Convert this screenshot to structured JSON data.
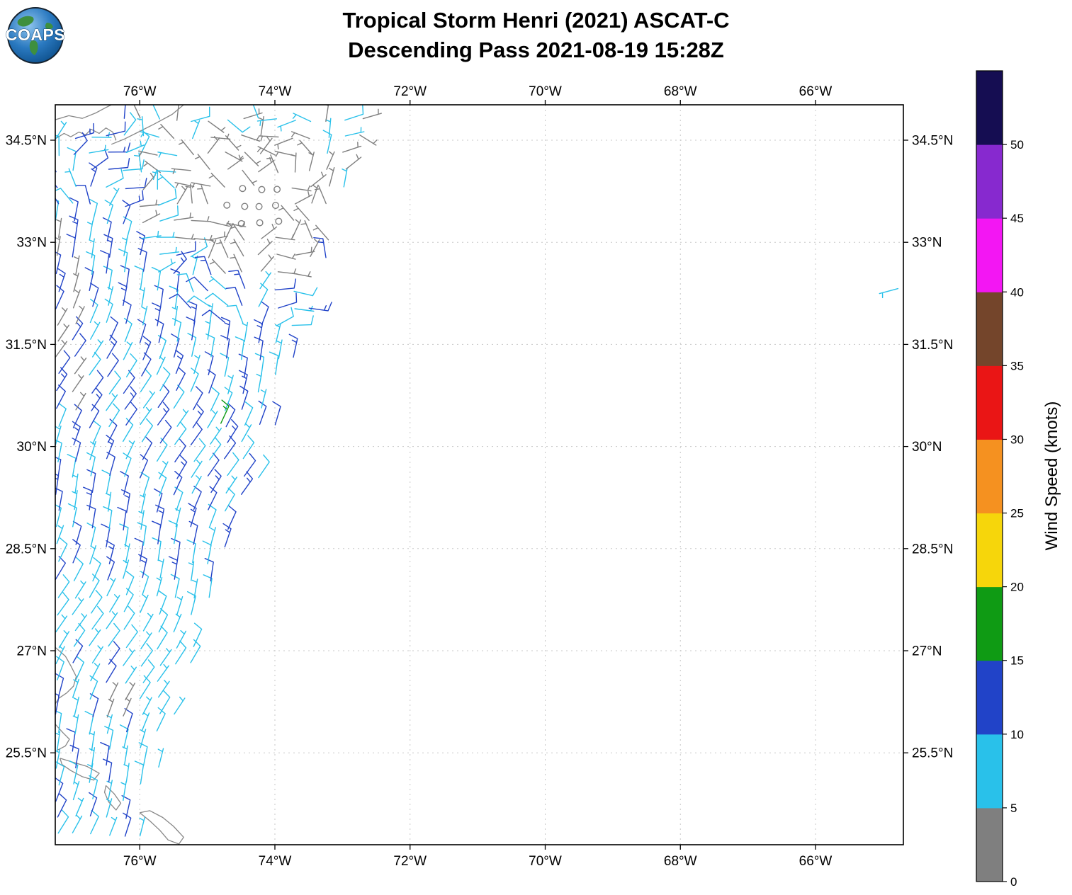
{
  "header": {
    "title_line1": "Tropical Storm Henri (2021) ASCAT-C",
    "title_line2": "Descending Pass 2021-08-19 15:28Z",
    "logo_text": "COAPS"
  },
  "axes": {
    "lon_ticks": [
      {
        "deg": -76,
        "label": "76°W"
      },
      {
        "deg": -74,
        "label": "74°W"
      },
      {
        "deg": -72,
        "label": "72°W"
      },
      {
        "deg": -70,
        "label": "70°W"
      },
      {
        "deg": -68,
        "label": "68°W"
      },
      {
        "deg": -66,
        "label": "66°W"
      }
    ],
    "lat_ticks": [
      {
        "deg": 34.5,
        "label": "34.5°N"
      },
      {
        "deg": 33,
        "label": "33°N"
      },
      {
        "deg": 31.5,
        "label": "31.5°N"
      },
      {
        "deg": 30,
        "label": "30°N"
      },
      {
        "deg": 28.5,
        "label": "28.5°N"
      },
      {
        "deg": 27,
        "label": "27°N"
      },
      {
        "deg": 25.5,
        "label": "25.5°N"
      }
    ]
  },
  "colorbar": {
    "label": "Wind Speed (knots)",
    "tick_values": [
      0,
      5,
      10,
      15,
      20,
      25,
      30,
      35,
      40,
      45,
      50
    ]
  },
  "chart_data": {
    "type": "wind_barb_map",
    "title": "Tropical Storm Henri (2021) ASCAT-C Descending Pass 2021-08-19 15:28Z",
    "units": "knots",
    "extent": {
      "lon_min": -77.25,
      "lon_max": -64.7,
      "lat_min": 24.15,
      "lat_max": 35.02
    },
    "grid_spacing_deg": 0.25,
    "speed_bins_knots": [
      {
        "min_kt": 0,
        "max_kt": 5,
        "color": "#7f7f7f"
      },
      {
        "min_kt": 5,
        "max_kt": 10,
        "color": "#29c1ea"
      },
      {
        "min_kt": 10,
        "max_kt": 15,
        "color": "#2143c8"
      },
      {
        "min_kt": 15,
        "max_kt": 20,
        "color": "#0f9b14"
      },
      {
        "min_kt": 20,
        "max_kt": 25,
        "color": "#f6d60b"
      },
      {
        "min_kt": 25,
        "max_kt": 30,
        "color": "#f59120"
      },
      {
        "min_kt": 30,
        "max_kt": 35,
        "color": "#ea1515"
      },
      {
        "min_kt": 35,
        "max_kt": 40,
        "color": "#74452b"
      },
      {
        "min_kt": 40,
        "max_kt": 45,
        "color": "#f316f3"
      },
      {
        "min_kt": 45,
        "max_kt": 50,
        "color": "#8729cf"
      },
      {
        "min_kt": 50,
        "max_kt": 55,
        "color": "#150d52"
      }
    ],
    "swath": {
      "lat_min": 24.3,
      "lat_max": 34.92,
      "lon_min": -77.22,
      "right_edge_lon_at_35n": -72.55,
      "right_edge_slope_deg_per_deg": 0.33,
      "edge_raggedness_deg": 0.18,
      "land_mask_top_left": {
        "lat_min": 34.55,
        "lon_max": -76.35
      }
    },
    "wind_model": {
      "calm_center_lon": -74.25,
      "calm_center_lat": 33.55,
      "calm_radius_deg": 0.5,
      "light_wind_radius_deg": 1.15,
      "streak_wavelength_deg": 0.55,
      "streak_shear": 0.36,
      "streak_phase": 1.0,
      "base_speed_north_kt": 9.8,
      "streak_amplitude_north_kt": 3.0,
      "base_speed_south_kt": 7.6,
      "streak_amplitude_south_kt": 1.6,
      "south_zone_lat_max": 28.0,
      "sw_streak_boost_kt": 2.2,
      "north_mixed_zone": {
        "lat_min": 33.0,
        "lon_min": -76.2,
        "base_kt": 5.5,
        "amp_kt": 2.5
      },
      "west_gray_zone": {
        "lon_max": -76.85,
        "lat_min": 30.5,
        "lat_max": 33.3,
        "kt": 4
      },
      "se_gray_patch": {
        "lat_min": 25.95,
        "lat_max": 26.35,
        "lon_min": -76.6,
        "lon_max": -76.15,
        "kt": 4
      },
      "mean_wind_from_deg": 22
    },
    "overrides": [
      {
        "lon": -74.8,
        "lat": 30.34,
        "kt": 16,
        "dir_from_deg": 25
      },
      {
        "lon": -64.78,
        "lat": 32.32,
        "kt": 6,
        "dir_from_deg": 255
      }
    ],
    "coastlines": [
      {
        "name": "segment-1",
        "points": [
          [
            -77.25,
            34.52
          ],
          [
            -77.12,
            34.6
          ],
          [
            -77.02,
            34.55
          ],
          [
            -76.9,
            34.62
          ],
          [
            -76.8,
            34.58
          ],
          [
            -76.72,
            34.66
          ],
          [
            -76.6,
            34.6
          ],
          [
            -76.5,
            34.68
          ],
          [
            -76.4,
            34.62
          ],
          [
            -76.35,
            34.5
          ]
        ]
      },
      {
        "name": "segment-2",
        "points": [
          [
            -76.42,
            34.44
          ],
          [
            -76.22,
            34.52
          ],
          [
            -76.02,
            34.62
          ],
          [
            -75.78,
            34.74
          ],
          [
            -75.52,
            34.88
          ],
          [
            -75.35,
            35.02
          ]
        ]
      },
      {
        "name": "segment-3",
        "points": [
          [
            -77.25,
            34.8
          ],
          [
            -77.05,
            34.86
          ],
          [
            -76.85,
            34.82
          ],
          [
            -76.65,
            34.9
          ],
          [
            -76.5,
            34.98
          ],
          [
            -76.42,
            35.02
          ]
        ]
      },
      {
        "name": "segment-4",
        "points": [
          [
            -77.25,
            27.05
          ],
          [
            -77.1,
            26.92
          ],
          [
            -77.02,
            26.78
          ],
          [
            -76.94,
            26.62
          ],
          [
            -76.98,
            26.48
          ],
          [
            -77.08,
            26.38
          ],
          [
            -77.2,
            26.3
          ],
          [
            -77.25,
            26.22
          ]
        ]
      },
      {
        "name": "segment-5",
        "points": [
          [
            -77.25,
            25.92
          ],
          [
            -77.14,
            25.8
          ],
          [
            -77.04,
            25.7
          ],
          [
            -77.1,
            25.6
          ],
          [
            -77.22,
            25.54
          ]
        ]
      },
      {
        "name": "segment-6",
        "points": [
          [
            -77.18,
            25.42
          ],
          [
            -76.98,
            25.36
          ],
          [
            -76.78,
            25.3
          ],
          [
            -76.6,
            25.2
          ],
          [
            -76.68,
            25.1
          ],
          [
            -76.85,
            25.15
          ],
          [
            -77.02,
            25.24
          ],
          [
            -77.15,
            25.33
          ],
          [
            -77.18,
            25.42
          ]
        ]
      },
      {
        "name": "segment-7",
        "points": [
          [
            -76.5,
            25.02
          ],
          [
            -76.38,
            24.9
          ],
          [
            -76.28,
            24.76
          ],
          [
            -76.35,
            24.66
          ],
          [
            -76.46,
            24.78
          ],
          [
            -76.52,
            24.92
          ],
          [
            -76.5,
            25.02
          ]
        ]
      },
      {
        "name": "segment-8",
        "points": [
          [
            -76.0,
            24.62
          ],
          [
            -75.85,
            24.5
          ],
          [
            -75.7,
            24.36
          ],
          [
            -75.58,
            24.22
          ],
          [
            -75.42,
            24.16
          ],
          [
            -75.35,
            24.26
          ],
          [
            -75.5,
            24.42
          ],
          [
            -75.66,
            24.55
          ],
          [
            -75.85,
            24.65
          ],
          [
            -76.0,
            24.62
          ]
        ]
      }
    ]
  }
}
